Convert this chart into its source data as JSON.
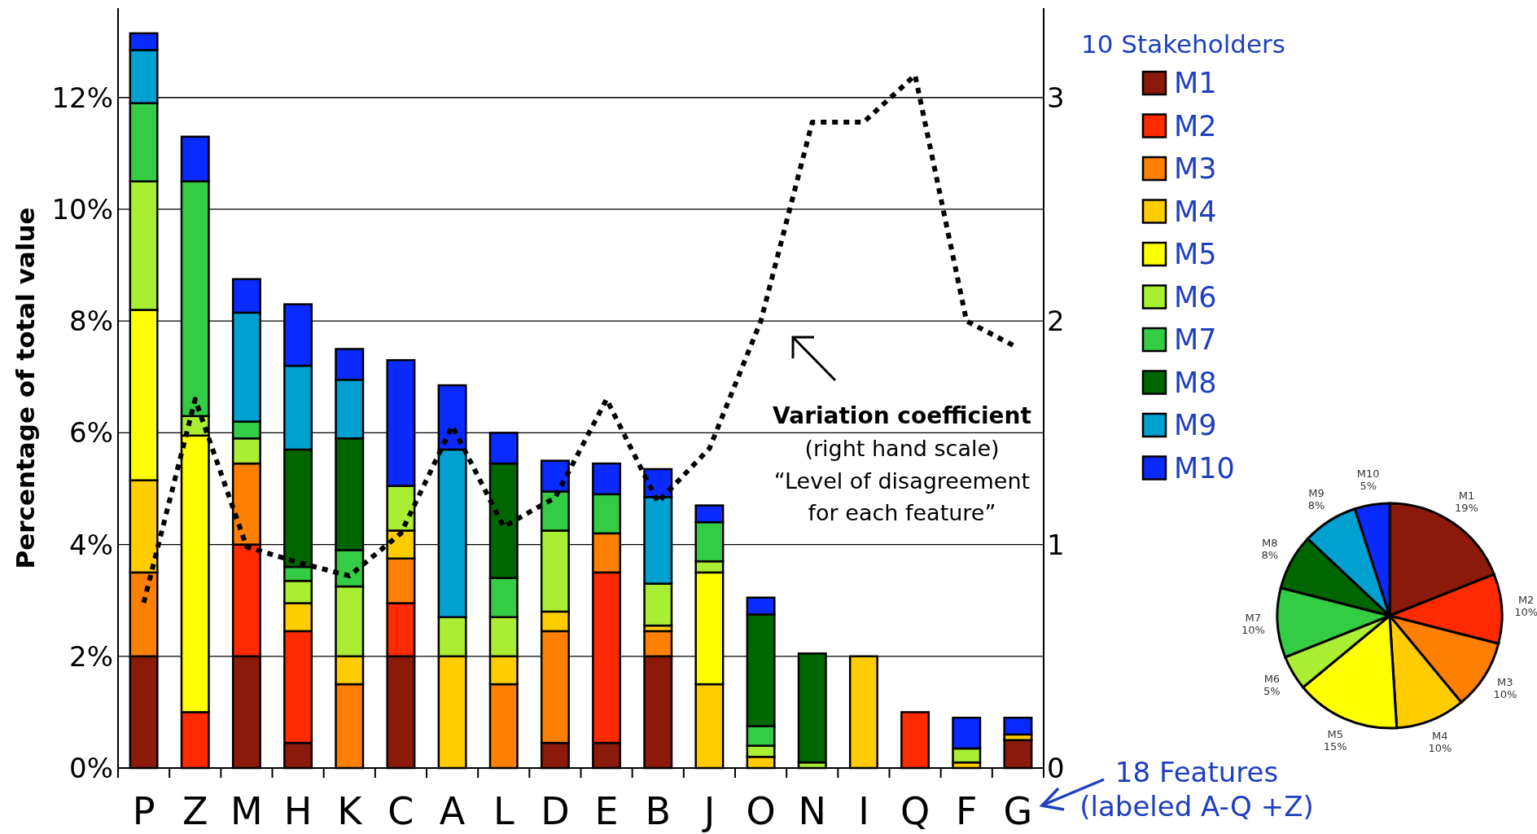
{
  "chart_data": [
    {
      "type": "bar",
      "stacked": true,
      "ylabel": "Percentage of total value",
      "legend_title": "10 Stakeholders",
      "legend": "right",
      "grid": "y",
      "categories": [
        "P",
        "Z",
        "M",
        "H",
        "K",
        "C",
        "A",
        "L",
        "D",
        "E",
        "B",
        "J",
        "O",
        "N",
        "I",
        "Q",
        "F",
        "G"
      ],
      "ylim": [
        0,
        13.6
      ],
      "yticks": [
        {
          "value": 0,
          "label": "0%"
        },
        {
          "value": 2,
          "label": "2%"
        },
        {
          "value": 4,
          "label": "4%"
        },
        {
          "value": 6,
          "label": "6%"
        },
        {
          "value": 8,
          "label": "8%"
        },
        {
          "value": 10,
          "label": "10%"
        },
        {
          "value": 12,
          "label": "12%"
        }
      ],
      "y2lim": [
        0,
        3.4
      ],
      "y2ticks": [
        0,
        1,
        2,
        3
      ],
      "series": [
        {
          "name": "M1",
          "color": "#8b1a0a",
          "values": [
            2,
            null,
            2,
            0.45,
            null,
            2,
            null,
            null,
            0.45,
            0.45,
            2,
            null,
            null,
            null,
            null,
            null,
            null,
            0.5
          ]
        },
        {
          "name": "M2",
          "color": "#ff2a00",
          "values": [
            null,
            1,
            2,
            2,
            null,
            0.95,
            null,
            null,
            null,
            3.05,
            null,
            null,
            null,
            null,
            null,
            1,
            null,
            null
          ]
        },
        {
          "name": "M3",
          "color": "#ff7f00",
          "values": [
            1.5,
            null,
            1.45,
            null,
            1.5,
            0.8,
            null,
            1.5,
            2,
            0.7,
            0.45,
            null,
            null,
            null,
            null,
            null,
            null,
            null
          ]
        },
        {
          "name": "M4",
          "color": "#ffcc00",
          "values": [
            1.65,
            null,
            null,
            0.5,
            0.5,
            0.5,
            2,
            0.5,
            0.35,
            null,
            0.1,
            1.5,
            0.2,
            null,
            2,
            null,
            0.1,
            0.1
          ]
        },
        {
          "name": "M5",
          "color": "#ffff00",
          "values": [
            3.05,
            4.95,
            null,
            null,
            null,
            null,
            null,
            null,
            null,
            null,
            null,
            2,
            null,
            null,
            null,
            null,
            null,
            null
          ]
        },
        {
          "name": "M6",
          "color": "#aaee33",
          "values": [
            2.3,
            0.35,
            0.45,
            0.4,
            1.25,
            0.8,
            0.7,
            0.7,
            1.45,
            null,
            0.75,
            0.2,
            0.2,
            0.1,
            null,
            null,
            0.25,
            null
          ]
        },
        {
          "name": "M7",
          "color": "#33cc44",
          "values": [
            1.4,
            4.2,
            0.3,
            0.25,
            0.65,
            null,
            null,
            0.7,
            0.7,
            0.7,
            null,
            0.7,
            0.35,
            null,
            null,
            null,
            null,
            null
          ]
        },
        {
          "name": "M8",
          "color": "#006600",
          "values": [
            null,
            null,
            null,
            2.1,
            2,
            null,
            null,
            2.05,
            null,
            null,
            null,
            null,
            2,
            1.95,
            null,
            null,
            null,
            null
          ]
        },
        {
          "name": "M9",
          "color": "#00a0d0",
          "values": [
            0.95,
            null,
            1.95,
            1.5,
            1.05,
            null,
            3,
            null,
            null,
            null,
            1.55,
            null,
            null,
            null,
            null,
            null,
            null,
            null
          ]
        },
        {
          "name": "M10",
          "color": "#0a2aff",
          "values": [
            0.3,
            0.8,
            0.6,
            1.1,
            0.55,
            2.25,
            1.15,
            0.55,
            0.55,
            0.55,
            0.5,
            0.3,
            0.3,
            null,
            null,
            null,
            0.55,
            0.3
          ]
        },
        {
          "name": "Variation coefficient",
          "type": "line",
          "axis": "y2",
          "color": "#000000",
          "line_style": "dotted",
          "marker": "none",
          "values": [
            0.74,
            1.65,
            0.99,
            0.92,
            0.86,
            1.05,
            1.53,
            1.08,
            1.21,
            1.65,
            1.19,
            1.43,
            2,
            2.89,
            2.89,
            3.1,
            2,
            1.88
          ]
        }
      ],
      "annotations": [
        "(right hand scale)",
        "“Level of disagreement for each feature”",
        "18 Features (labeled A-Q +Z)"
      ]
    },
    {
      "type": "pie",
      "categories": [
        "M1",
        "M2",
        "M3",
        "M4",
        "M5",
        "M6",
        "M7",
        "M8",
        "M9",
        "M10"
      ],
      "values": [
        19,
        10,
        10,
        10,
        15,
        5,
        10,
        8,
        8,
        5
      ],
      "colors": [
        "#8b1a0a",
        "#ff2a00",
        "#ff7f00",
        "#ffcc00",
        "#ffff00",
        "#aaee33",
        "#33cc44",
        "#006600",
        "#00a0d0",
        "#0a2aff"
      ],
      "value_labels": [
        "19%",
        "10%",
        "10%",
        "10%",
        "15%",
        "5%",
        "10%",
        "8%",
        "8%",
        "5%"
      ]
    }
  ]
}
